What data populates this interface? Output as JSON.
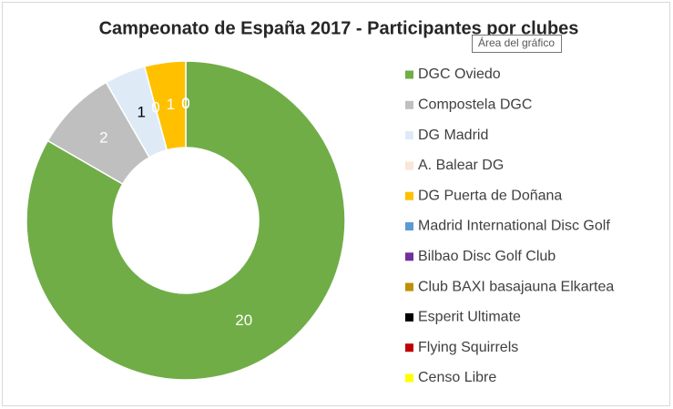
{
  "chart_data": {
    "type": "donut",
    "title": "Campeonato de España 2017 - Participantes por clubes",
    "tooltip": "Área del gráfico",
    "categories": [
      "DGC Oviedo",
      "Compostela DGC",
      "DG Madrid",
      "A. Balear DG",
      "DG Puerta de Doñana",
      "Madrid International Disc Golf",
      "Bilbao Disc Golf Club",
      "Club BAXI basajauna Elkartea",
      "Esperit Ultimate",
      "Flying Squirrels",
      "Censo Libre"
    ],
    "values": [
      20,
      2,
      1,
      0,
      1,
      0,
      0,
      0,
      0,
      0,
      0
    ],
    "colors": [
      "#70ad47",
      "#bfbfbf",
      "#deebf7",
      "#fbe5d6",
      "#ffc000",
      "#5b9bd5",
      "#7030a0",
      "#bf9000",
      "#000000",
      "#c00000",
      "#ffff00"
    ],
    "legend": "right"
  }
}
